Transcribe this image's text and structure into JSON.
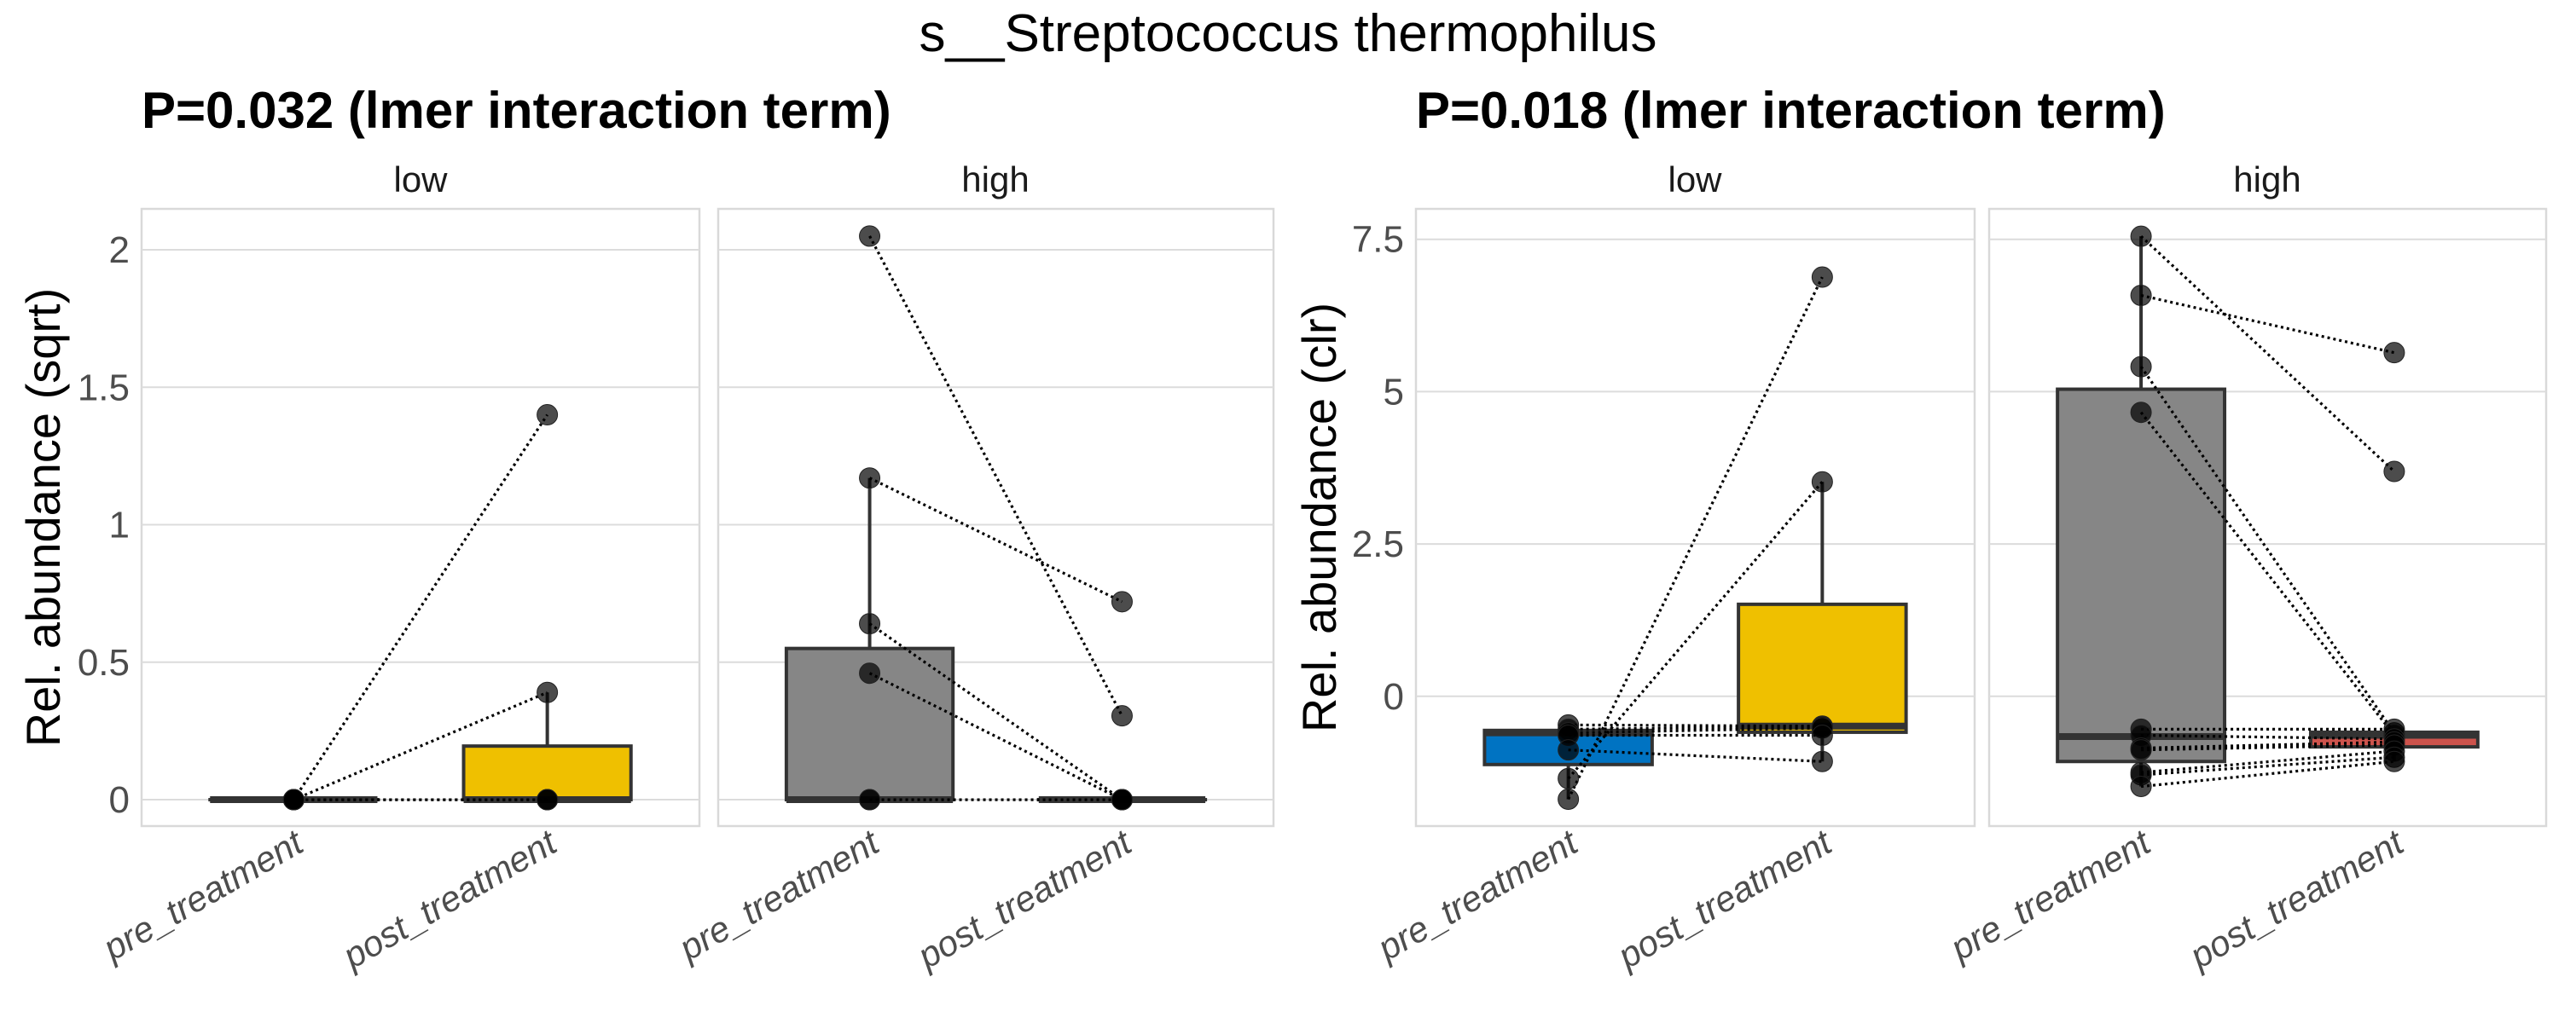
{
  "chart_data": {
    "type": "boxplot",
    "title": "s__Streptococcus thermophilus",
    "colors": {
      "pre_low": "#0073C2",
      "post_low": "#EFC000",
      "pre_high": "#868686",
      "post_high": "#CD534C",
      "pre_low_sqrt": "#0073C2",
      "neutral": "#868686"
    },
    "plots": [
      {
        "subtitle": "P=0.032 (lmer interaction term)",
        "ylabel": "Rel. abundance (sqrt)",
        "ylim": [
          -0.096,
          2.149
        ],
        "yticks": [
          0,
          0.5,
          1,
          1.5,
          2
        ],
        "ytick_labels": [
          "0",
          "0.5",
          "1",
          "1.5",
          "2"
        ],
        "grid": true,
        "categories": [
          "pre_treatment",
          "post_treatment"
        ],
        "facets": [
          {
            "label": "low",
            "boxes": [
              {
                "category": "pre_treatment",
                "color": "#0073C2",
                "q1": 0,
                "median": 0,
                "q3": 0,
                "whisker_low": 0,
                "whisker_high": 0
              },
              {
                "category": "post_treatment",
                "color": "#EFC000",
                "q1": 0,
                "median": 0,
                "q3": 0.195,
                "whisker_low": 0,
                "whisker_high": 0.39
              }
            ],
            "pairs": [
              [
                0,
                1.4
              ],
              [
                0,
                0.39
              ],
              [
                0,
                0
              ],
              [
                0,
                0
              ],
              [
                0,
                0
              ]
            ]
          },
          {
            "label": "high",
            "boxes": [
              {
                "category": "pre_treatment",
                "color": "#868686",
                "q1": 0,
                "median": 0,
                "q3": 0.55,
                "whisker_low": 0,
                "whisker_high": 1.17
              },
              {
                "category": "post_treatment",
                "color": "#CD534C",
                "q1": 0,
                "median": 0,
                "q3": 0,
                "whisker_low": 0,
                "whisker_high": 0
              }
            ],
            "pairs": [
              [
                2.05,
                0.305
              ],
              [
                1.17,
                0.72
              ],
              [
                0.64,
                0
              ],
              [
                0.46,
                0
              ],
              [
                0,
                0
              ],
              [
                0,
                0
              ]
            ]
          }
        ]
      },
      {
        "subtitle": "P=0.018 (lmer interaction term)",
        "ylabel": "Rel. abundance (clr)",
        "ylim": [
          -2.13,
          8.0
        ],
        "yticks": [
          0,
          2.5,
          5,
          7.5
        ],
        "ytick_labels": [
          "0",
          "2.5",
          "5",
          "7.5"
        ],
        "grid": true,
        "categories": [
          "pre_treatment",
          "post_treatment"
        ],
        "facets": [
          {
            "label": "low",
            "boxes": [
              {
                "category": "pre_treatment",
                "color": "#0073C2",
                "q1": -1.12,
                "median": -0.6,
                "q3": -0.56,
                "whisker_low": -1.69,
                "whisker_high": -0.47
              },
              {
                "category": "post_treatment",
                "color": "#EFC000",
                "q1": -0.59,
                "median": -0.49,
                "q3": 1.51,
                "whisker_low": -1.07,
                "whisker_high": 3.52
              }
            ],
            "pairs": [
              [
                -1.69,
                6.88
              ],
              [
                -1.35,
                3.52
              ],
              [
                -0.47,
                -0.49
              ],
              [
                -0.54,
                -0.5
              ],
              [
                -0.6,
                -0.52
              ],
              [
                -0.64,
                -0.64
              ],
              [
                -0.88,
                -1.07
              ]
            ]
          },
          {
            "label": "high",
            "boxes": [
              {
                "category": "pre_treatment",
                "color": "#868686",
                "q1": -1.07,
                "median": -0.66,
                "q3": 5.04,
                "whisker_low": -1.48,
                "whisker_high": 7.55
              },
              {
                "category": "post_treatment",
                "color": "#CD534C",
                "q1": -0.83,
                "median": -0.64,
                "q3": -0.59,
                "whisker_low": -1.07,
                "whisker_high": -0.54
              }
            ],
            "pairs": [
              [
                7.55,
                3.69
              ],
              [
                6.58,
                5.64
              ],
              [
                5.41,
                -0.6
              ],
              [
                4.66,
                -0.64
              ],
              [
                -0.54,
                -0.54
              ],
              [
                -0.64,
                -0.7
              ],
              [
                -0.85,
                -0.75
              ],
              [
                -0.88,
                -0.8
              ],
              [
                -1.25,
                -0.9
              ],
              [
                -1.29,
                -1.0
              ],
              [
                -1.48,
                -1.07
              ]
            ]
          }
        ]
      }
    ]
  }
}
